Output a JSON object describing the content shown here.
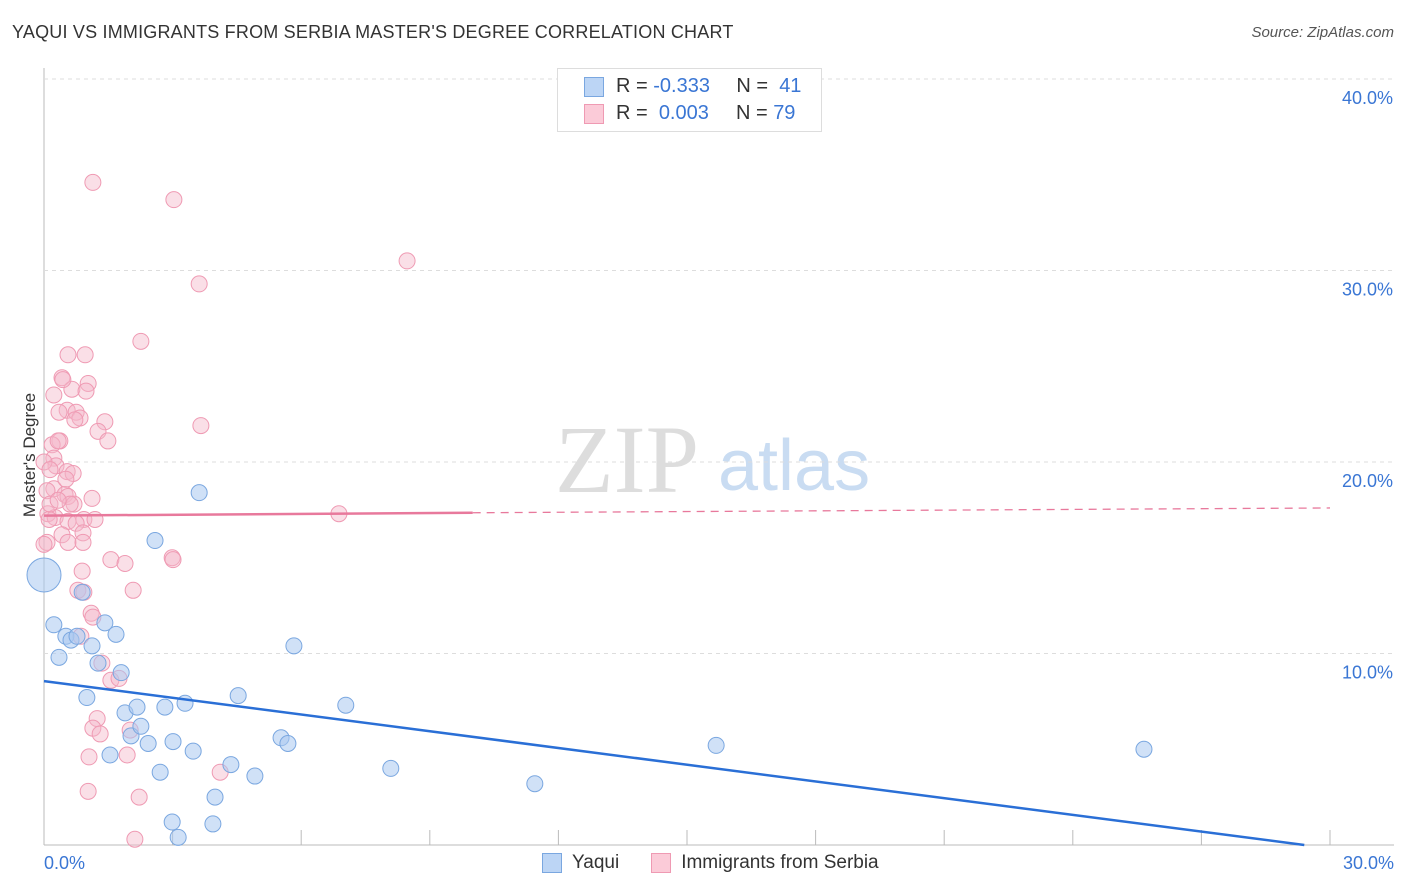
{
  "title": "YAQUI VS IMMIGRANTS FROM SERBIA MASTER'S DEGREE CORRELATION CHART",
  "source": "Source: ZipAtlas.com",
  "watermark": "ZIPatlas",
  "legend": {
    "rows": [
      {
        "r_label": "R =",
        "r_value": "-0.333",
        "n_label": "N =",
        "n_value": "41"
      },
      {
        "r_label": "R =",
        "r_value": "0.003",
        "n_label": "N =",
        "n_value": "79"
      }
    ]
  },
  "chart_data": {
    "type": "scatter",
    "title": "YAQUI VS IMMIGRANTS FROM SERBIA MASTER'S DEGREE CORRELATION CHART",
    "xlabel": "",
    "ylabel": "Master's Degree",
    "xlim": [
      0,
      30
    ],
    "ylim": [
      0,
      40
    ],
    "x_tick_labels": [
      "0.0%",
      "30.0%"
    ],
    "y_ticks": [
      10,
      20,
      30,
      40
    ],
    "y_tick_labels": [
      "10.0%",
      "20.0%",
      "30.0%",
      "40.0%"
    ],
    "grid": true,
    "legend_position": "bottom",
    "colors": {
      "Yaqui": "#a9c8f0",
      "Immigrants from Serbia": "#f5b8ca",
      "yaqui_line": "#2a6fd6",
      "serbia_line": "#e8799c"
    },
    "series": [
      {
        "name": "Yaqui",
        "trend": {
          "x": [
            0,
            29.4
          ],
          "y": [
            8.56,
            0
          ]
        },
        "points": [
          [
            0,
            14.1
          ],
          [
            0.23,
            11.5
          ],
          [
            0.35,
            9.8
          ],
          [
            0.51,
            10.9
          ],
          [
            0.63,
            10.7
          ],
          [
            0.77,
            10.9
          ],
          [
            0.89,
            13.2
          ],
          [
            1.0,
            7.7
          ],
          [
            1.12,
            10.4
          ],
          [
            1.26,
            9.5
          ],
          [
            1.42,
            11.6
          ],
          [
            1.54,
            4.7
          ],
          [
            1.68,
            11.0
          ],
          [
            1.8,
            9.0
          ],
          [
            1.89,
            6.9
          ],
          [
            2.03,
            5.7
          ],
          [
            2.17,
            7.2
          ],
          [
            2.26,
            6.2
          ],
          [
            2.43,
            5.3
          ],
          [
            2.59,
            15.9
          ],
          [
            2.71,
            3.8
          ],
          [
            2.82,
            7.2
          ],
          [
            2.99,
            1.2
          ],
          [
            3.01,
            5.4
          ],
          [
            3.13,
            0.4
          ],
          [
            3.29,
            7.4
          ],
          [
            3.48,
            4.9
          ],
          [
            3.62,
            18.4
          ],
          [
            3.94,
            1.1
          ],
          [
            3.99,
            2.5
          ],
          [
            4.36,
            4.2
          ],
          [
            4.53,
            7.8
          ],
          [
            4.92,
            3.6
          ],
          [
            5.53,
            5.6
          ],
          [
            5.69,
            5.3
          ],
          [
            5.83,
            10.4
          ],
          [
            7.04,
            7.3
          ],
          [
            8.09,
            4.0
          ],
          [
            11.45,
            3.2
          ],
          [
            15.68,
            5.2
          ],
          [
            25.66,
            5.0
          ]
        ]
      },
      {
        "name": "Immigrants from Serbia",
        "trend": {
          "x": [
            0,
            10,
            30
          ],
          "y": [
            17.2,
            17.35,
            17.6
          ]
        },
        "points": [
          [
            1.14,
            34.6
          ],
          [
            3.03,
            33.7
          ],
          [
            8.47,
            30.5
          ],
          [
            3.62,
            29.3
          ],
          [
            2.26,
            26.3
          ],
          [
            0.56,
            25.6
          ],
          [
            0.96,
            25.6
          ],
          [
            0.42,
            24.4
          ],
          [
            1.03,
            24.1
          ],
          [
            0.65,
            23.8
          ],
          [
            0.23,
            23.5
          ],
          [
            0.98,
            23.7
          ],
          [
            0.54,
            22.7
          ],
          [
            0.75,
            22.6
          ],
          [
            0.35,
            22.6
          ],
          [
            0.84,
            22.3
          ],
          [
            1.42,
            22.1
          ],
          [
            1.26,
            21.6
          ],
          [
            1.49,
            21.1
          ],
          [
            0.37,
            21.1
          ],
          [
            0.19,
            20.9
          ],
          [
            3.66,
            21.9
          ],
          [
            0.23,
            20.2
          ],
          [
            0.28,
            19.8
          ],
          [
            0,
            20.0
          ],
          [
            0.14,
            19.6
          ],
          [
            0.54,
            19.5
          ],
          [
            0.68,
            19.4
          ],
          [
            0.23,
            18.6
          ],
          [
            0.49,
            18.3
          ],
          [
            1.12,
            18.1
          ],
          [
            0.56,
            18.2
          ],
          [
            0.09,
            17.3
          ],
          [
            0.7,
            17.8
          ],
          [
            0.26,
            17.1
          ],
          [
            0.56,
            16.9
          ],
          [
            0.93,
            17.0
          ],
          [
            0.75,
            16.8
          ],
          [
            0.42,
            16.2
          ],
          [
            0.91,
            16.3
          ],
          [
            0.07,
            15.8
          ],
          [
            0.56,
            15.8
          ],
          [
            0.91,
            15.8
          ],
          [
            0.89,
            14.3
          ],
          [
            1.56,
            14.9
          ],
          [
            1.89,
            14.7
          ],
          [
            2.99,
            15.0
          ],
          [
            3.01,
            14.9
          ],
          [
            6.88,
            17.3
          ],
          [
            0.79,
            13.3
          ],
          [
            0.93,
            13.2
          ],
          [
            2.08,
            13.3
          ],
          [
            1.1,
            12.1
          ],
          [
            1.14,
            11.9
          ],
          [
            1.35,
            9.5
          ],
          [
            0.86,
            10.9
          ],
          [
            1.56,
            8.6
          ],
          [
            1.75,
            8.7
          ],
          [
            1.24,
            6.6
          ],
          [
            1.14,
            6.1
          ],
          [
            1.31,
            5.8
          ],
          [
            2.01,
            6.0
          ],
          [
            1.05,
            4.6
          ],
          [
            1.94,
            4.7
          ],
          [
            4.11,
            3.8
          ],
          [
            1.03,
            2.8
          ],
          [
            2.22,
            2.5
          ],
          [
            2.12,
            0.3
          ],
          [
            0.12,
            17.0
          ],
          [
            0.07,
            18.5
          ],
          [
            0.33,
            21.1
          ],
          [
            0.44,
            24.3
          ],
          [
            0.14,
            17.8
          ],
          [
            0,
            15.7
          ],
          [
            0.61,
            17.8
          ],
          [
            0.72,
            22.2
          ],
          [
            1.19,
            17.0
          ],
          [
            0.51,
            19.1
          ],
          [
            0.33,
            18.0
          ]
        ]
      }
    ]
  }
}
